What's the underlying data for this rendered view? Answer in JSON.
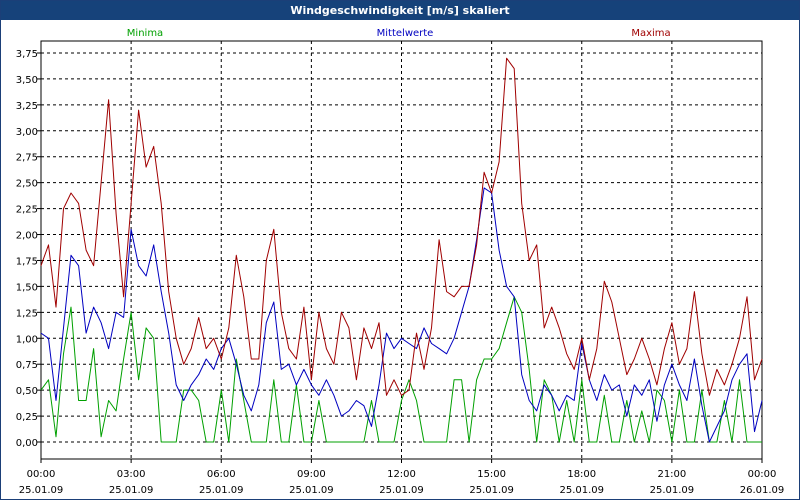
{
  "window": {
    "title": "Windgeschwindigkeit [m/s] skaliert"
  },
  "chart_data": {
    "type": "line",
    "title": "Windgeschwindigkeit [m/s] skaliert",
    "ylim": [
      0,
      3.75
    ],
    "yticks": [
      "0,00",
      "0,25",
      "0,50",
      "0,75",
      "1,00",
      "1,25",
      "1,50",
      "1,75",
      "2,00",
      "2,25",
      "2,50",
      "2,75",
      "3,00",
      "3,25",
      "3,50",
      "3,75"
    ],
    "xticks": [
      {
        "time": "00:00",
        "date": "25.01.09"
      },
      {
        "time": "03:00",
        "date": "25.01.09"
      },
      {
        "time": "06:00",
        "date": "25.01.09"
      },
      {
        "time": "09:00",
        "date": "25.01.09"
      },
      {
        "time": "12:00",
        "date": "25.01.09"
      },
      {
        "time": "15:00",
        "date": "25.01.09"
      },
      {
        "time": "18:00",
        "date": "25.01.09"
      },
      {
        "time": "21:00",
        "date": "25.01.09"
      },
      {
        "time": "00:00",
        "date": "26.01.09"
      }
    ],
    "xlim_hours": [
      0,
      24
    ],
    "grid": true,
    "legend_position": "top",
    "series": [
      {
        "name": "Minima",
        "color": "#00a000",
        "x": [
          0,
          0.25,
          0.5,
          0.75,
          1,
          1.25,
          1.5,
          1.75,
          2,
          2.25,
          2.5,
          2.75,
          3,
          3.25,
          3.5,
          3.75,
          4,
          4.25,
          4.5,
          4.75,
          5,
          5.25,
          5.5,
          5.75,
          6,
          6.25,
          6.5,
          6.75,
          7,
          7.25,
          7.5,
          7.75,
          8,
          8.25,
          8.5,
          8.75,
          9,
          9.25,
          9.5,
          9.75,
          10,
          10.25,
          10.5,
          10.75,
          11,
          11.25,
          11.5,
          11.75,
          12,
          12.25,
          12.5,
          12.75,
          13,
          13.25,
          13.5,
          13.75,
          14,
          14.25,
          14.5,
          14.75,
          15,
          15.25,
          15.5,
          15.75,
          16,
          16.25,
          16.5,
          16.75,
          17,
          17.25,
          17.5,
          17.75,
          18,
          18.25,
          18.5,
          18.75,
          19,
          19.25,
          19.5,
          19.75,
          20,
          20.25,
          20.5,
          20.75,
          21,
          21.25,
          21.5,
          21.75,
          22,
          22.25,
          22.5,
          22.75,
          23,
          23.25,
          23.5,
          23.75,
          24
        ],
        "values": [
          0.5,
          0.6,
          0.05,
          0.85,
          1.3,
          0.4,
          0.4,
          0.9,
          0.05,
          0.4,
          0.3,
          0.8,
          1.25,
          0.6,
          1.1,
          1.0,
          0.0,
          0.0,
          0.0,
          0.5,
          0.5,
          0.4,
          0.0,
          0.0,
          0.5,
          0.0,
          0.8,
          0.4,
          0.0,
          0.0,
          0.0,
          0.6,
          0.0,
          0.0,
          0.55,
          0.0,
          0.0,
          0.4,
          0.0,
          0.0,
          0.0,
          0.0,
          0.0,
          0.0,
          0.4,
          0.0,
          0.0,
          0.0,
          0.4,
          0.6,
          0.4,
          0.0,
          0.0,
          0.0,
          0.0,
          0.6,
          0.6,
          0.0,
          0.6,
          0.8,
          0.8,
          0.9,
          1.15,
          1.4,
          1.25,
          0.7,
          0.0,
          0.6,
          0.45,
          0.0,
          0.4,
          0.0,
          0.6,
          0.0,
          0.0,
          0.45,
          0.0,
          0.0,
          0.4,
          0.0,
          0.3,
          0.0,
          0.5,
          0.4,
          0.0,
          0.5,
          0.0,
          0.0,
          0.5,
          0.0,
          0.0,
          0.4,
          0.0,
          0.6,
          0.0,
          0.0,
          0.0
        ]
      },
      {
        "name": "Mittelwerte",
        "color": "#0000c0",
        "x": [
          0,
          0.25,
          0.5,
          0.75,
          1,
          1.25,
          1.5,
          1.75,
          2,
          2.25,
          2.5,
          2.75,
          3,
          3.25,
          3.5,
          3.75,
          4,
          4.25,
          4.5,
          4.75,
          5,
          5.25,
          5.5,
          5.75,
          6,
          6.25,
          6.5,
          6.75,
          7,
          7.25,
          7.5,
          7.75,
          8,
          8.25,
          8.5,
          8.75,
          9,
          9.25,
          9.5,
          9.75,
          10,
          10.25,
          10.5,
          10.75,
          11,
          11.25,
          11.5,
          11.75,
          12,
          12.25,
          12.5,
          12.75,
          13,
          13.25,
          13.5,
          13.75,
          14,
          14.25,
          14.5,
          14.75,
          15,
          15.25,
          15.5,
          15.75,
          16,
          16.25,
          16.5,
          16.75,
          17,
          17.25,
          17.5,
          17.75,
          18,
          18.25,
          18.5,
          18.75,
          19,
          19.25,
          19.5,
          19.75,
          20,
          20.25,
          20.5,
          20.75,
          21,
          21.25,
          21.5,
          21.75,
          22,
          22.25,
          22.5,
          22.75,
          23,
          23.25,
          23.5,
          23.75,
          24
        ],
        "values": [
          1.05,
          1.0,
          0.4,
          1.1,
          1.8,
          1.7,
          1.05,
          1.3,
          1.15,
          0.9,
          1.25,
          1.2,
          2.05,
          1.7,
          1.6,
          1.9,
          1.45,
          1.05,
          0.55,
          0.4,
          0.55,
          0.65,
          0.8,
          0.7,
          0.9,
          1.0,
          0.75,
          0.45,
          0.3,
          0.55,
          1.15,
          1.35,
          0.7,
          0.75,
          0.55,
          0.7,
          0.55,
          0.45,
          0.6,
          0.45,
          0.25,
          0.3,
          0.4,
          0.35,
          0.15,
          0.55,
          1.05,
          0.9,
          1.0,
          0.95,
          0.9,
          1.1,
          0.95,
          0.9,
          0.85,
          1.0,
          1.25,
          1.5,
          1.95,
          2.45,
          2.4,
          1.85,
          1.5,
          1.4,
          0.65,
          0.4,
          0.3,
          0.55,
          0.45,
          0.3,
          0.45,
          0.4,
          0.95,
          0.6,
          0.4,
          0.65,
          0.5,
          0.55,
          0.25,
          0.55,
          0.45,
          0.6,
          0.2,
          0.55,
          0.75,
          0.55,
          0.4,
          0.8,
          0.35,
          0.0,
          0.15,
          0.3,
          0.6,
          0.75,
          0.85,
          0.1,
          0.4
        ]
      },
      {
        "name": "Maxima",
        "color": "#a00000",
        "x": [
          0,
          0.25,
          0.5,
          0.75,
          1,
          1.25,
          1.5,
          1.75,
          2,
          2.25,
          2.5,
          2.75,
          3,
          3.25,
          3.5,
          3.75,
          4,
          4.25,
          4.5,
          4.75,
          5,
          5.25,
          5.5,
          5.75,
          6,
          6.25,
          6.5,
          6.75,
          7,
          7.25,
          7.5,
          7.75,
          8,
          8.25,
          8.5,
          8.75,
          9,
          9.25,
          9.5,
          9.75,
          10,
          10.25,
          10.5,
          10.75,
          11,
          11.25,
          11.5,
          11.75,
          12,
          12.25,
          12.5,
          12.75,
          13,
          13.25,
          13.5,
          13.75,
          14,
          14.25,
          14.5,
          14.75,
          15,
          15.25,
          15.5,
          15.75,
          16,
          16.25,
          16.5,
          16.75,
          17,
          17.25,
          17.5,
          17.75,
          18,
          18.25,
          18.5,
          18.75,
          19,
          19.25,
          19.5,
          19.75,
          20,
          20.25,
          20.5,
          20.75,
          21,
          21.25,
          21.5,
          21.75,
          22,
          22.25,
          22.5,
          22.75,
          23,
          23.25,
          23.5,
          23.75,
          24
        ],
        "values": [
          1.7,
          1.9,
          1.3,
          2.25,
          2.4,
          2.3,
          1.85,
          1.7,
          2.5,
          3.3,
          2.2,
          1.4,
          2.3,
          3.2,
          2.65,
          2.85,
          2.3,
          1.45,
          1.0,
          0.75,
          0.9,
          1.2,
          0.9,
          1.0,
          0.8,
          1.1,
          1.8,
          1.4,
          0.8,
          0.8,
          1.75,
          2.05,
          1.25,
          0.9,
          0.8,
          1.3,
          0.6,
          1.25,
          0.9,
          0.75,
          1.25,
          1.1,
          0.6,
          1.1,
          0.9,
          1.15,
          0.45,
          0.6,
          0.45,
          0.5,
          1.05,
          0.7,
          1.1,
          1.95,
          1.45,
          1.4,
          1.5,
          1.5,
          1.9,
          2.6,
          2.4,
          2.7,
          3.7,
          3.6,
          2.3,
          1.75,
          1.9,
          1.1,
          1.3,
          1.1,
          0.85,
          0.7,
          1.0,
          0.6,
          0.9,
          1.55,
          1.35,
          1.0,
          0.65,
          0.8,
          1.0,
          0.8,
          0.55,
          0.9,
          1.15,
          0.75,
          0.9,
          1.45,
          0.85,
          0.45,
          0.7,
          0.55,
          0.75,
          1.0,
          1.4,
          0.6,
          0.8
        ]
      }
    ]
  }
}
